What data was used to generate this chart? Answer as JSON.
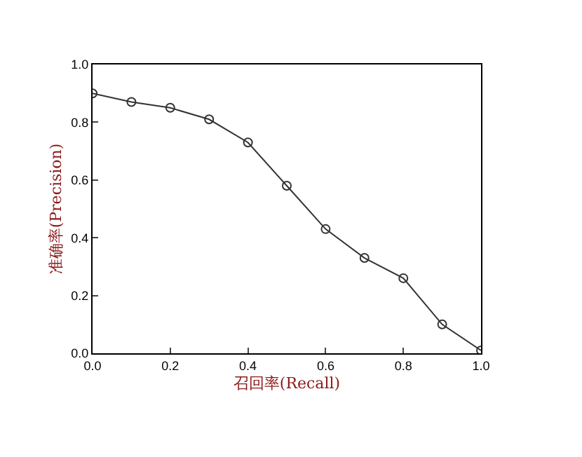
{
  "chart_data": {
    "type": "line",
    "xlabel": "召回率(Recall)",
    "ylabel": "准确率(Precision)",
    "x": [
      0.0,
      0.1,
      0.2,
      0.3,
      0.4,
      0.5,
      0.6,
      0.7,
      0.8,
      0.9,
      1.0
    ],
    "series": [
      {
        "color": "#333333",
        "values": [
          0.9,
          0.87,
          0.85,
          0.81,
          0.73,
          0.58,
          0.43,
          0.33,
          0.26,
          0.1,
          0.01
        ]
      }
    ],
    "xlim": [
      0,
      1
    ],
    "ylim": [
      0,
      1
    ],
    "xticks": [
      {
        "value": 0,
        "label": "0.0"
      },
      {
        "value": 0.2,
        "label": "0.2"
      },
      {
        "value": 0.4,
        "label": "0.4"
      },
      {
        "value": 0.6,
        "label": "0.6"
      },
      {
        "value": 0.8,
        "label": "0.8"
      },
      {
        "value": 1,
        "label": "1.0"
      }
    ],
    "yticks": [
      {
        "value": 0,
        "label": "0.0"
      },
      {
        "value": 0.2,
        "label": "0.2"
      },
      {
        "value": 0.4,
        "label": "0.4"
      },
      {
        "value": 0.6,
        "label": "0.6"
      },
      {
        "value": 0.8,
        "label": "0.8"
      },
      {
        "value": 1,
        "label": "1.0"
      }
    ],
    "legend": false,
    "marker": "circle",
    "line_style": "solid"
  }
}
